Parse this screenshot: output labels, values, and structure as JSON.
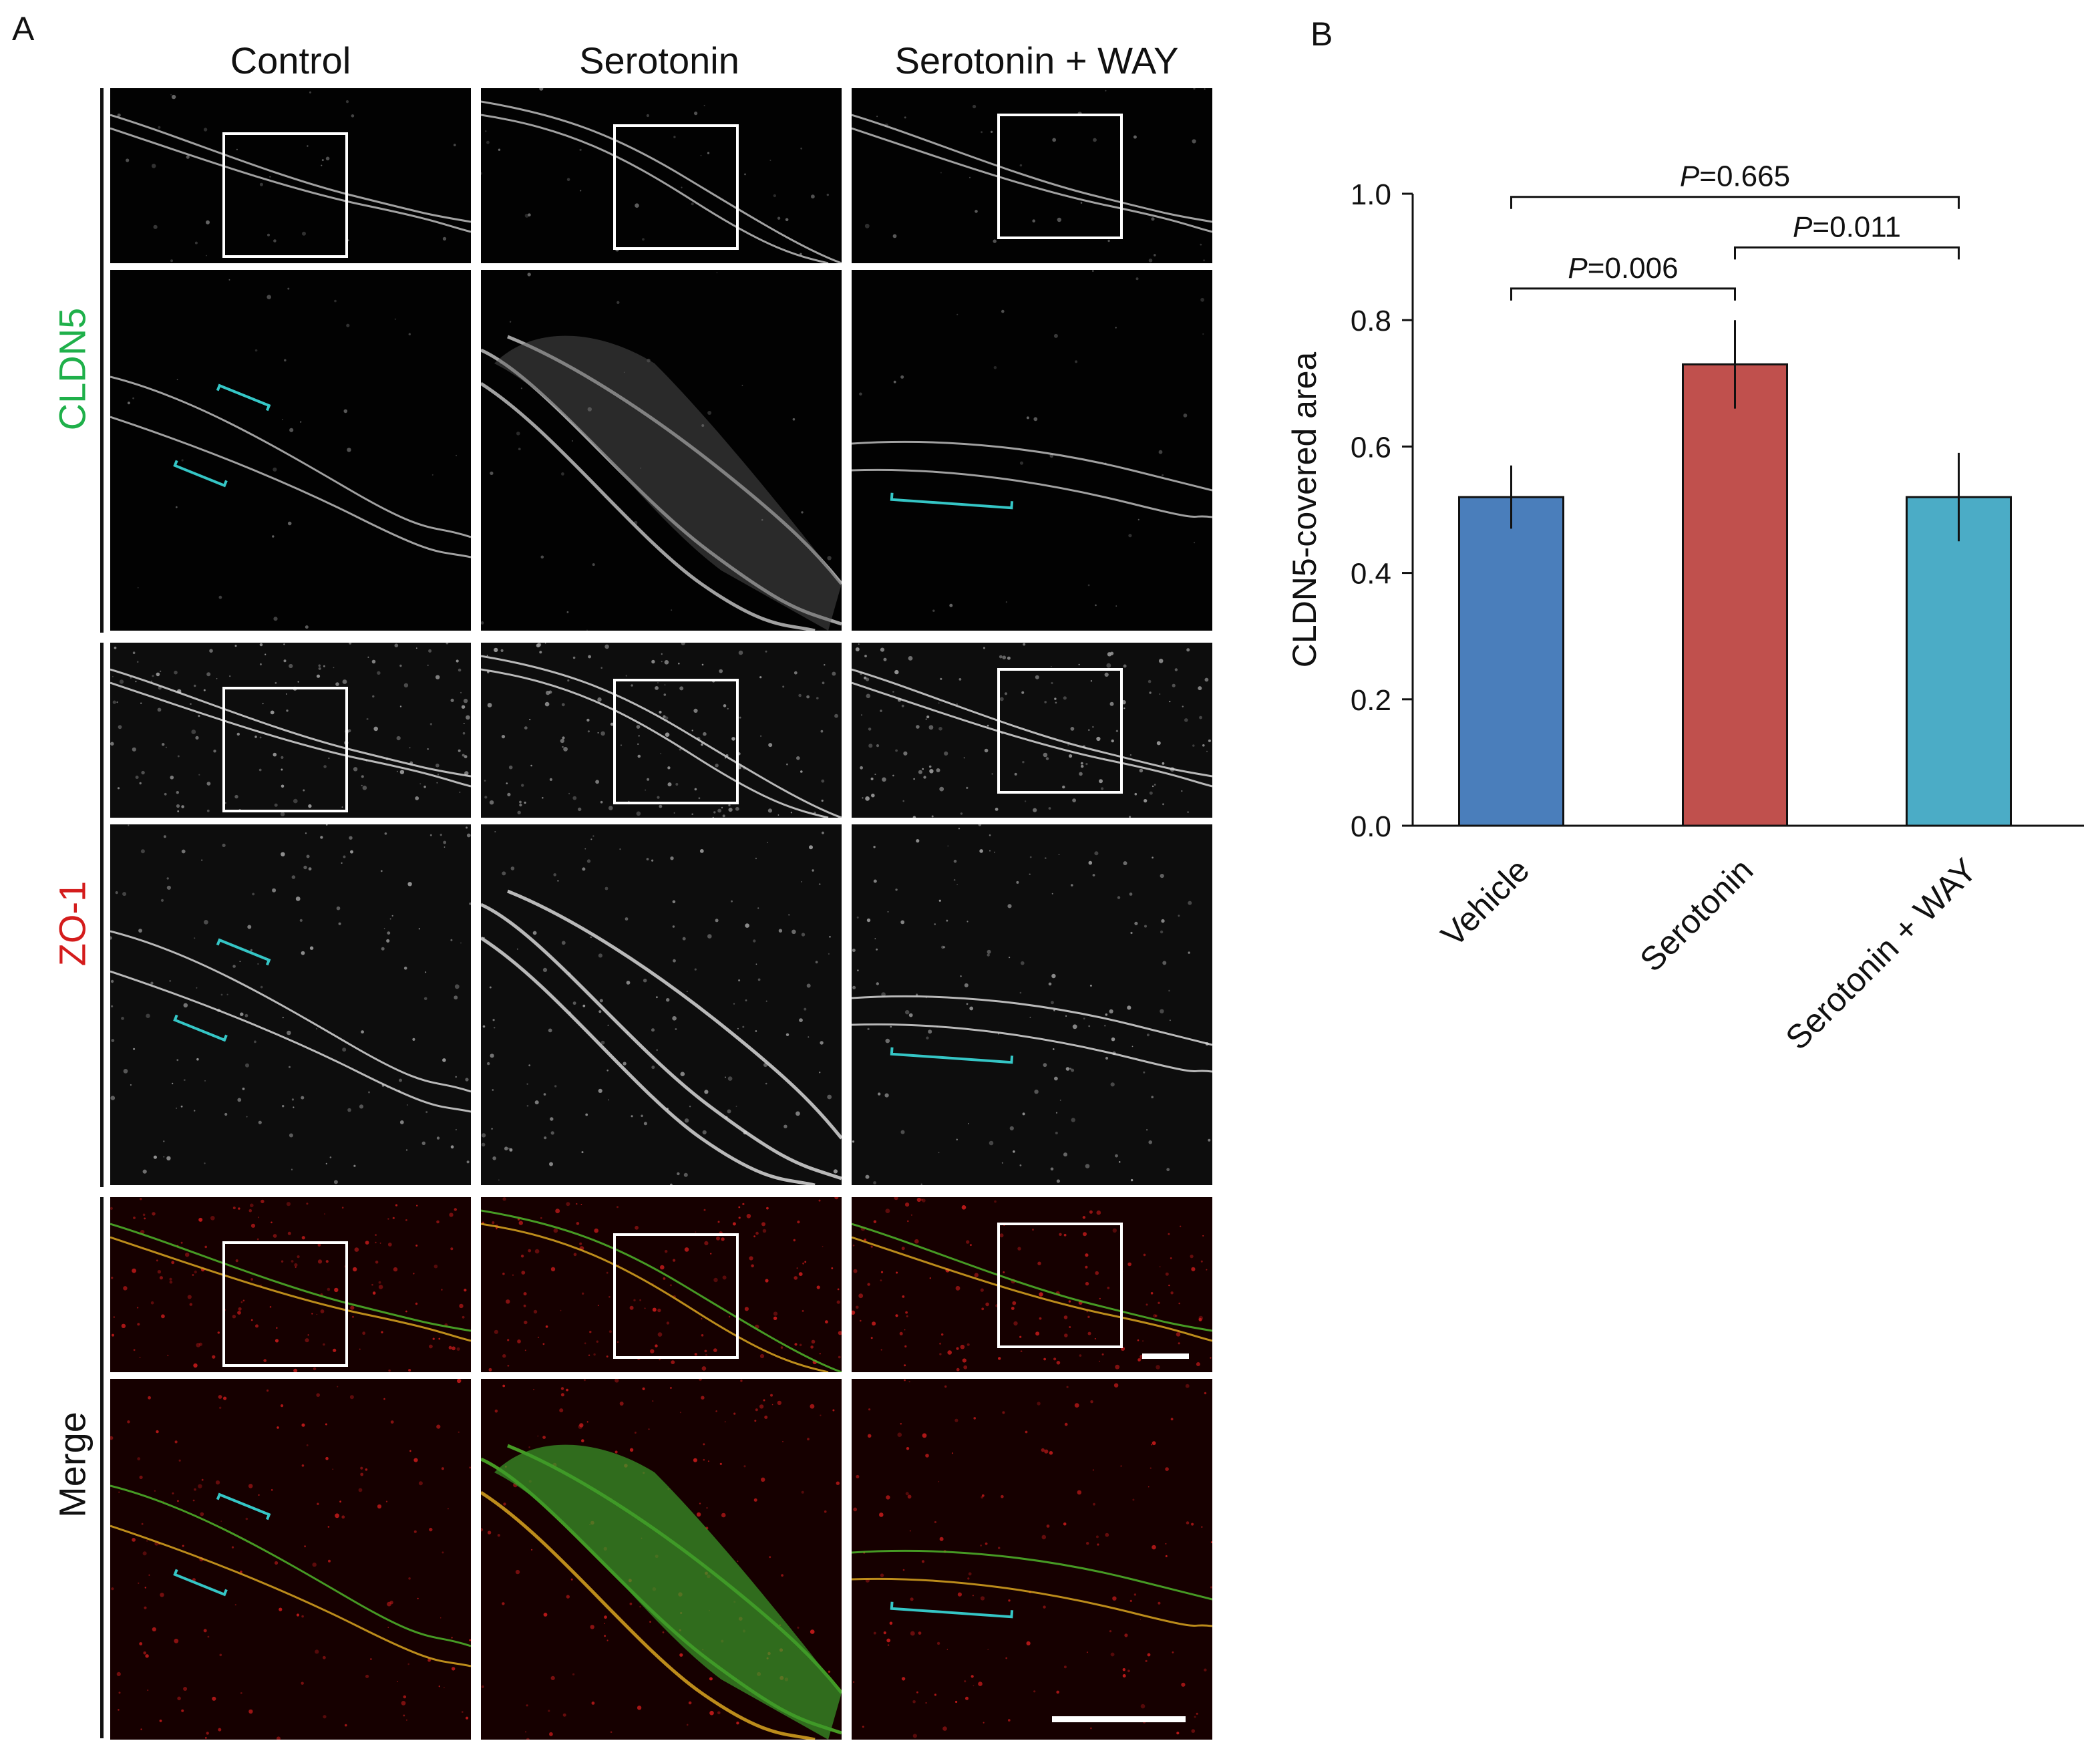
{
  "panel_a": {
    "letter": "A",
    "columns": [
      "Control",
      "Serotonin",
      "Serotonin + WAY"
    ],
    "rows": [
      {
        "label": "CLDN5",
        "color": "#1fb04a"
      },
      {
        "label": "ZO-1",
        "color": "#d41c1c"
      },
      {
        "label": "Merge",
        "color": "#111111"
      }
    ]
  },
  "panel_b": {
    "letter": "B"
  },
  "chart_data": {
    "type": "bar",
    "categories": [
      "Vehicle",
      "Serotonin",
      "Serotonin + WAY"
    ],
    "values": [
      0.52,
      0.73,
      0.52
    ],
    "errors": [
      0.05,
      0.07,
      0.07
    ],
    "colors": [
      "#4a7ebb",
      "#c0504d",
      "#4bacc6"
    ],
    "ylabel": "CLDN5-covered area",
    "ylim": [
      0.0,
      1.0
    ],
    "yticks": [
      "0.0",
      "0.2",
      "0.4",
      "0.6",
      "0.8",
      "1.0"
    ],
    "comparisons": [
      {
        "from": 0,
        "to": 1,
        "p_italic": "P",
        "p_rest": "=0.006"
      },
      {
        "from": 1,
        "to": 2,
        "p_italic": "P",
        "p_rest": "=0.011"
      },
      {
        "from": 0,
        "to": 2,
        "p_italic": "P",
        "p_rest": "=0.665"
      }
    ]
  }
}
